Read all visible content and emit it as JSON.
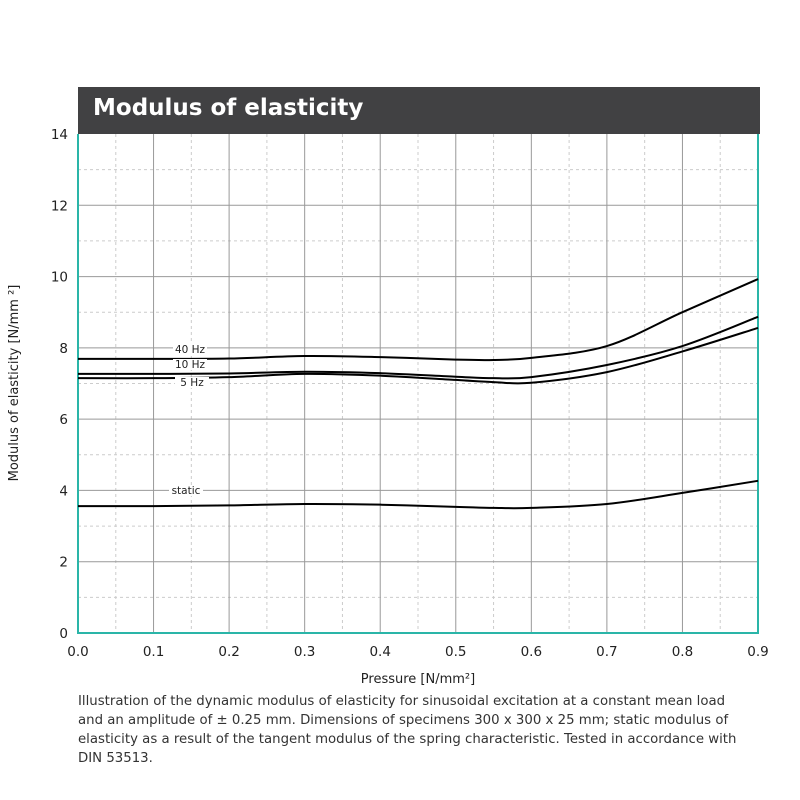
{
  "chart_data": {
    "type": "line",
    "title": "Modulus of elasticity",
    "xlabel": "Pressure [N/mm²]",
    "ylabel": "Modulus of elasticity  [N/mm ²]",
    "xlim": [
      0,
      0.9
    ],
    "ylim": [
      0,
      14
    ],
    "xticks": [
      "0.0",
      "0.1",
      "0.2",
      "0.3",
      "0.4",
      "0.5",
      "0.6",
      "0.7",
      "0.8",
      "0.9"
    ],
    "yticks": [
      "0",
      "2",
      "4",
      "6",
      "8",
      "10",
      "12",
      "14"
    ],
    "grid": true,
    "x": [
      0,
      0.1,
      0.2,
      0.3,
      0.4,
      0.5,
      0.55,
      0.6,
      0.7,
      0.8,
      0.9
    ],
    "series": [
      {
        "name": "40 Hz",
        "values": [
          7.69,
          7.69,
          7.7,
          7.77,
          7.74,
          7.67,
          7.66,
          7.72,
          8.05,
          9.0,
          9.93
        ]
      },
      {
        "name": "10 Hz",
        "values": [
          7.27,
          7.27,
          7.28,
          7.33,
          7.29,
          7.19,
          7.15,
          7.18,
          7.52,
          8.05,
          8.87
        ]
      },
      {
        "name": "5 Hz",
        "values": [
          7.15,
          7.15,
          7.18,
          7.27,
          7.22,
          7.1,
          7.04,
          7.02,
          7.32,
          7.9,
          8.56
        ]
      },
      {
        "name": "static",
        "values": [
          3.56,
          3.56,
          3.58,
          3.62,
          3.6,
          3.54,
          3.51,
          3.51,
          3.62,
          3.93,
          4.27
        ]
      }
    ],
    "color": "#000000",
    "frame_color": "#2ab5a8"
  },
  "caption": "Illustration of the dynamic modulus of elasticity for sinusoidal excitation at a constant mean load and an amplitude of ± 0.25 mm. Dimensions of specimens 300 x 300 x 25 mm; static modulus of elasticity as a result of the tangent modulus of the spring characteristic. Tested in accordance with DIN 53513."
}
